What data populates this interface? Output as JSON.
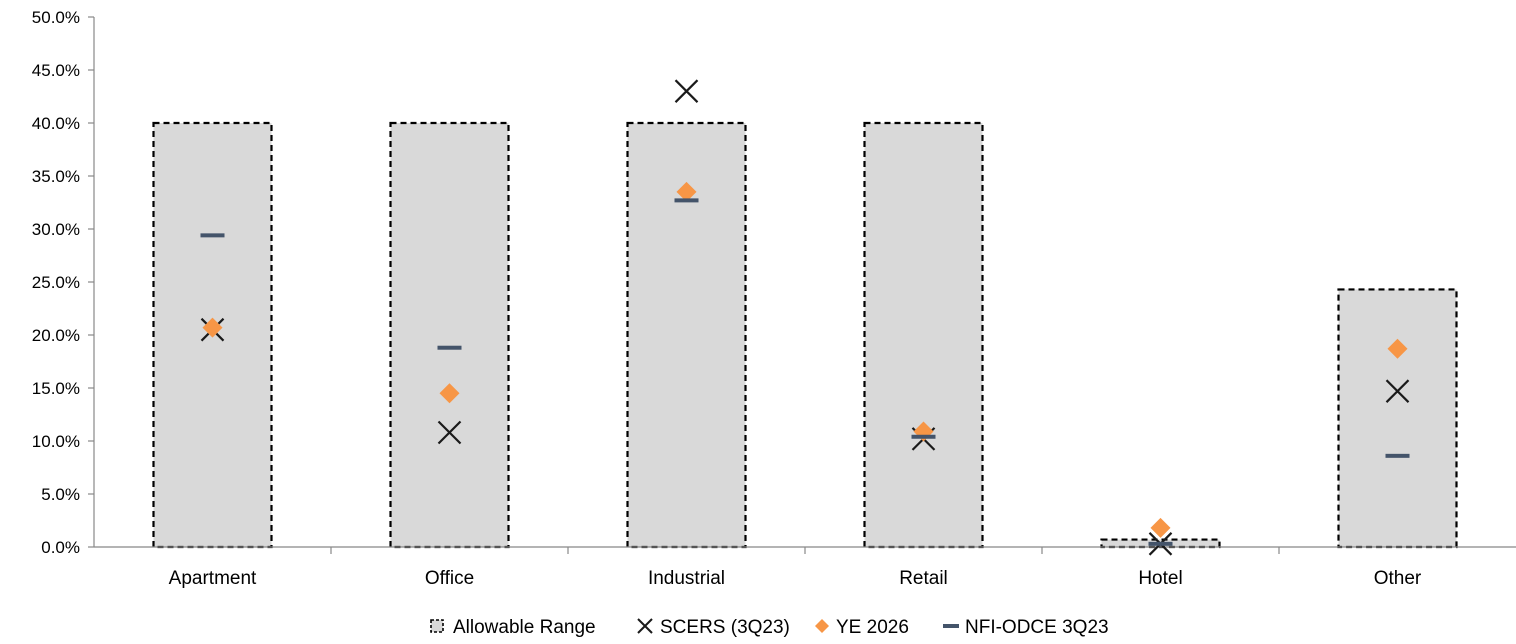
{
  "chart_data": {
    "type": "bar",
    "title": "",
    "xlabel": "",
    "ylabel": "",
    "ylim": [
      0,
      50
    ],
    "yticks": [
      "0.0%",
      "5.0%",
      "10.0%",
      "15.0%",
      "20.0%",
      "25.0%",
      "30.0%",
      "35.0%",
      "40.0%",
      "45.0%",
      "50.0%"
    ],
    "categories": [
      "Apartment",
      "Office",
      "Industrial",
      "Retail",
      "Hotel",
      "Other"
    ],
    "grid": false,
    "legend_position": "bottom",
    "series": [
      {
        "name": "Allowable Range",
        "kind": "bar",
        "values": [
          40.0,
          40.0,
          40.0,
          40.0,
          0.7,
          24.3
        ],
        "color": "#d9d9d9",
        "edge": "#000000"
      },
      {
        "name": "SCERS (3Q23)",
        "kind": "x-marker",
        "values": [
          20.5,
          10.8,
          43.0,
          10.2,
          0.3,
          14.7
        ],
        "color": "#1a1a1a"
      },
      {
        "name": "YE 2026",
        "kind": "diamond-marker",
        "values": [
          20.7,
          14.5,
          33.5,
          10.9,
          1.8,
          18.7
        ],
        "color": "#f79646"
      },
      {
        "name": "NFI-ODCE 3Q23",
        "kind": "dash-marker",
        "values": [
          29.4,
          18.8,
          32.7,
          10.4,
          0.3,
          8.6
        ],
        "color": "#44546a"
      }
    ]
  }
}
